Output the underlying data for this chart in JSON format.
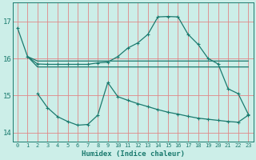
{
  "bg_color": "#cceee8",
  "grid_color": "#e08888",
  "line_color": "#1a7a6e",
  "xlabel": "Humidex (Indice chaleur)",
  "ylim": [
    13.75,
    17.5
  ],
  "xlim": [
    -0.5,
    23.5
  ],
  "yticks": [
    14,
    15,
    16,
    17
  ],
  "xticks": [
    0,
    1,
    2,
    3,
    4,
    5,
    6,
    7,
    8,
    9,
    10,
    11,
    12,
    13,
    14,
    15,
    16,
    17,
    18,
    19,
    20,
    21,
    22,
    23
  ],
  "curve_main_x": [
    0,
    1,
    2,
    3,
    4,
    5,
    6,
    7,
    8,
    9,
    10,
    11,
    12,
    13,
    14,
    15,
    16,
    17,
    18,
    19,
    20,
    21,
    22,
    23
  ],
  "curve_main_y": [
    16.82,
    16.05,
    15.85,
    15.84,
    15.84,
    15.84,
    15.84,
    15.84,
    15.88,
    15.9,
    16.05,
    16.28,
    16.42,
    16.65,
    17.12,
    17.13,
    17.12,
    16.65,
    16.38,
    16.0,
    15.85,
    15.18,
    15.05,
    14.5
  ],
  "curve_flat1_x": [
    1,
    2,
    3,
    4,
    5,
    6,
    7,
    8,
    9,
    10,
    11,
    12,
    13,
    14,
    15,
    16,
    17,
    18,
    19,
    20,
    21,
    22,
    23
  ],
  "curve_flat1_y": [
    16.05,
    15.93,
    15.93,
    15.93,
    15.93,
    15.93,
    15.93,
    15.93,
    15.93,
    15.93,
    15.93,
    15.93,
    15.93,
    15.93,
    15.93,
    15.93,
    15.93,
    15.93,
    15.93,
    15.93,
    15.93,
    15.93,
    15.93
  ],
  "curve_flat2_x": [
    1,
    2,
    3,
    4,
    5,
    6,
    7,
    8,
    9,
    10,
    11,
    12,
    13,
    14,
    15,
    16,
    17,
    18,
    19,
    20,
    21,
    22,
    23
  ],
  "curve_flat2_y": [
    16.05,
    15.77,
    15.77,
    15.77,
    15.77,
    15.77,
    15.77,
    15.77,
    15.77,
    15.77,
    15.77,
    15.77,
    15.77,
    15.77,
    15.77,
    15.77,
    15.77,
    15.77,
    15.77,
    15.77,
    15.77,
    15.77,
    15.77
  ],
  "curve_bot_x": [
    2,
    3,
    4,
    5,
    6,
    7,
    8,
    9,
    10,
    11,
    12,
    13,
    14,
    15,
    16,
    17,
    18,
    19,
    20,
    21,
    22,
    23
  ],
  "curve_bot_y": [
    15.05,
    14.67,
    14.43,
    14.3,
    14.2,
    14.22,
    14.47,
    15.35,
    14.97,
    14.87,
    14.78,
    14.7,
    14.62,
    14.55,
    14.5,
    14.44,
    14.39,
    14.36,
    14.33,
    14.3,
    14.28,
    14.47
  ]
}
